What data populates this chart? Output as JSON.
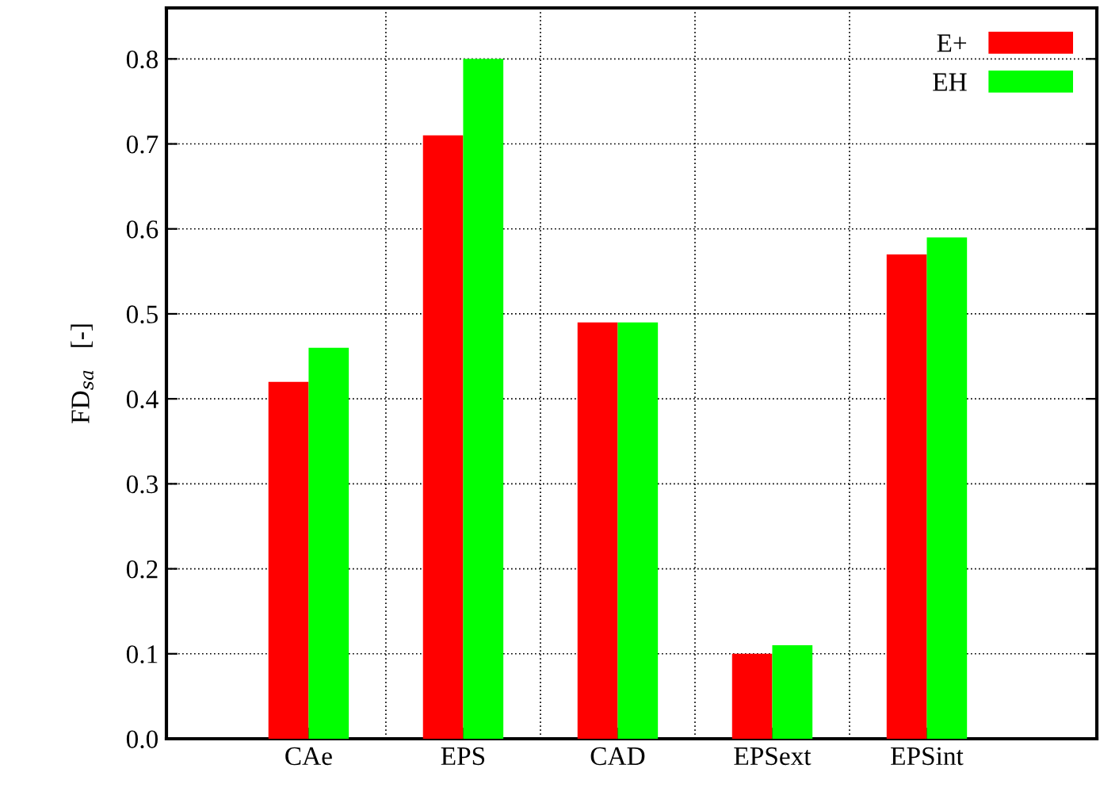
{
  "chart_data": {
    "type": "bar",
    "ylabel": "FD$_{sa}$   [-]",
    "categories": [
      "CAe",
      "EPS",
      "CAD",
      "EPSext",
      "EPSint"
    ],
    "series": [
      {
        "name": "E+",
        "color": "#ff0000",
        "values": [
          0.42,
          0.71,
          0.49,
          0.1,
          0.57
        ]
      },
      {
        "name": "EH",
        "color": "#00ff00",
        "values": [
          0.46,
          0.8,
          0.49,
          0.11,
          0.59
        ]
      }
    ],
    "ylim": [
      0,
      0.86
    ],
    "yticks": [
      {
        "value": 0,
        "label": "0.0"
      },
      0.1,
      0.2,
      0.3,
      0.4,
      0.5,
      0.6,
      0.7,
      0.8
    ],
    "grid": true,
    "legend": "top right"
  }
}
